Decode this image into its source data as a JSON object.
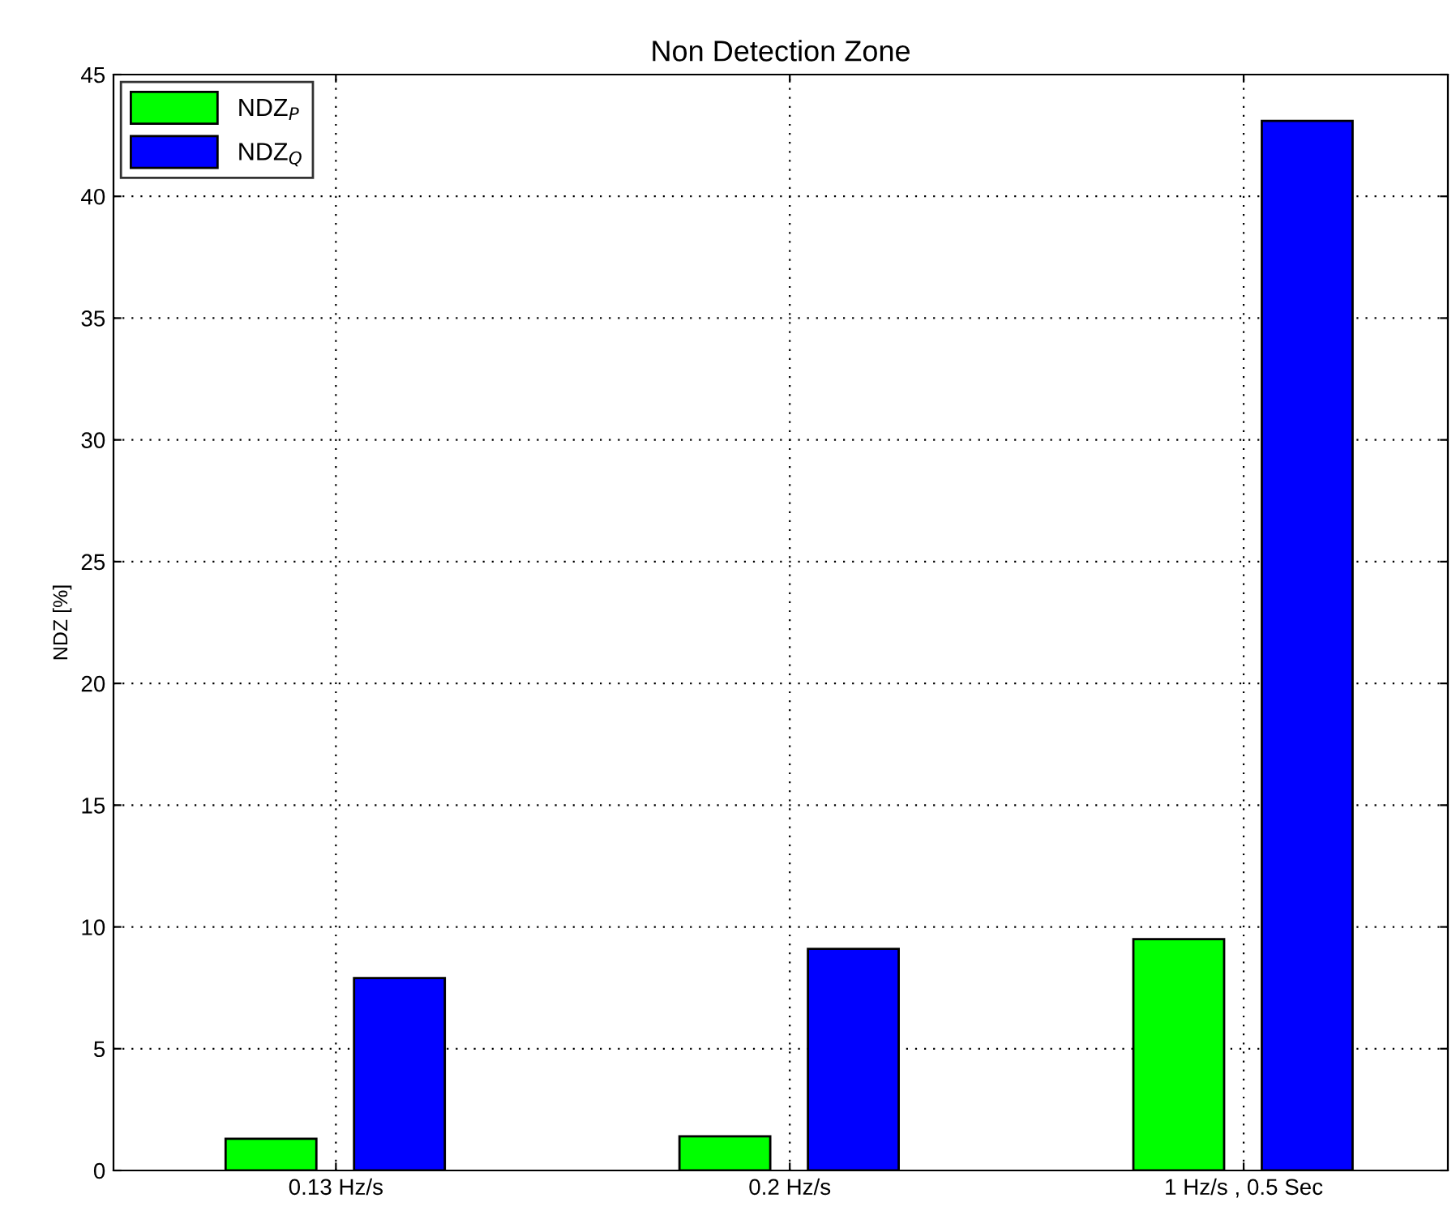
{
  "chart_data": {
    "type": "bar",
    "title": "Non Detection Zone",
    "ylabel": "NDZ [%]",
    "categories": [
      "0.13 Hz/s",
      "0.2 Hz/s",
      "1 Hz/s , 0.5 Sec"
    ],
    "series": [
      {
        "name": "NDZ$_{P}$",
        "color": "#00ff00",
        "values": [
          1.3,
          1.4,
          9.5
        ]
      },
      {
        "name": "NDZ$_{Q}$",
        "color": "#0000ff",
        "values": [
          7.9,
          9.1,
          43.1
        ]
      }
    ],
    "ylim": [
      0,
      45
    ],
    "yticks": [
      0,
      5,
      10,
      15,
      20,
      25,
      30,
      35,
      40,
      45
    ],
    "grid": true,
    "legend": "top left"
  }
}
